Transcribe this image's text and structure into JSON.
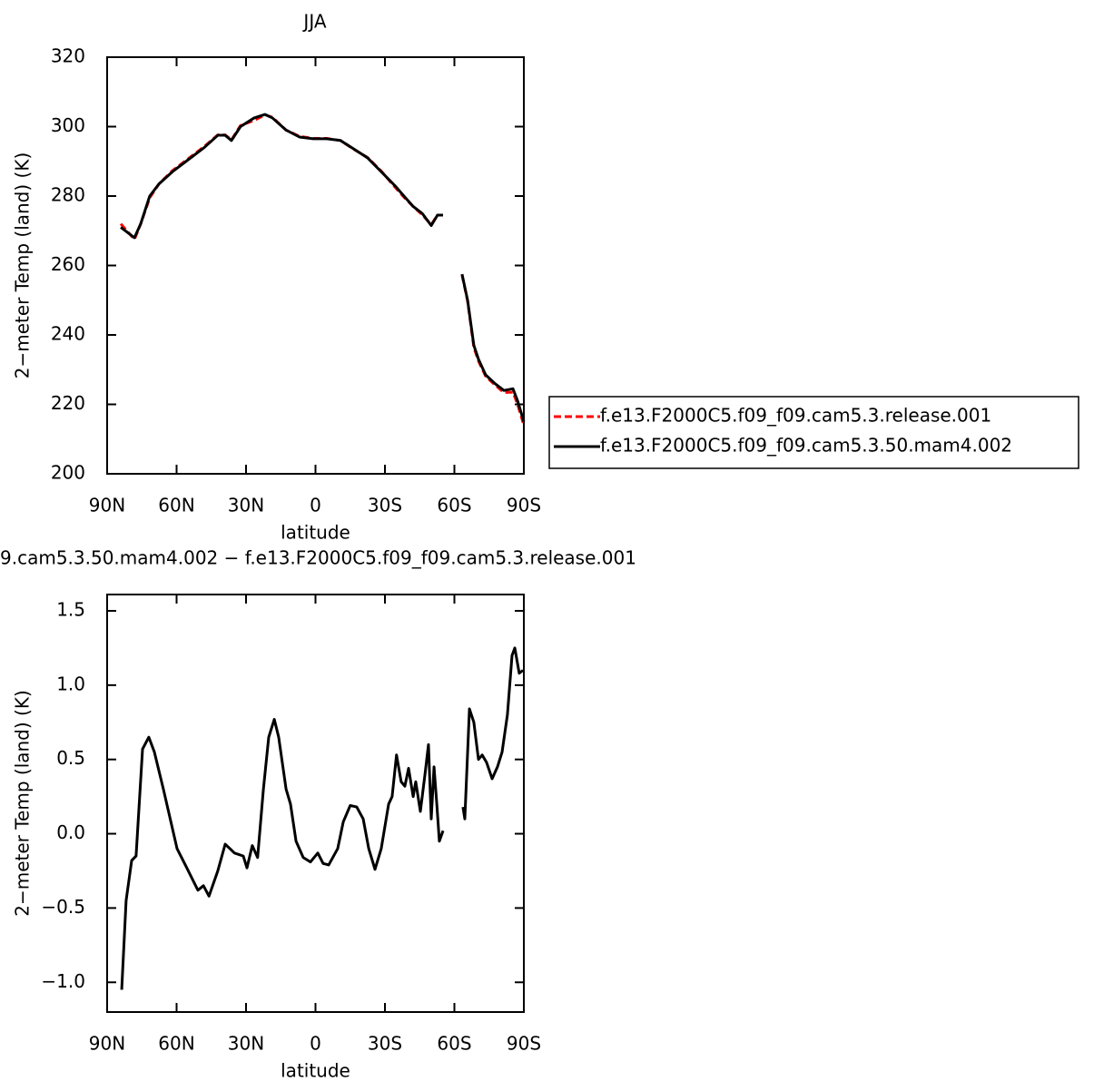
{
  "chart_data": [
    {
      "type": "line",
      "title": "JJA",
      "xlabel": "latitude",
      "ylabel": "2−meter Temp (land) (K)",
      "x": [
        84.1,
        78.2,
        75.5,
        71.6,
        67.6,
        61.8,
        55.9,
        48,
        42.2,
        39,
        36.3,
        32.4,
        26.5,
        21.8,
        18.6,
        12.7,
        6.9,
        1,
        -4.9,
        -10.8,
        -16.7,
        -22.5,
        -28.4,
        -34.3,
        -38.2,
        -42.2,
        -46.1,
        -50,
        -52.7,
        -55.1,
        -59,
        -63.3,
        -65.7,
        -68.4,
        -70.4,
        -73.5,
        -77.5,
        -81.4,
        -85.3,
        -87.3,
        -90
      ],
      "series": [
        {
          "name": "f.e13.F2000C5.f09_f09.cam5.3.release.001",
          "color": "#ff0000",
          "line_style": "dashed",
          "values": [
            272,
            267.5,
            272,
            279.5,
            283.5,
            287.3,
            290.3,
            294.3,
            297.6,
            297.6,
            296.2,
            300.3,
            301.8,
            303.4,
            302.7,
            299,
            297.2,
            296.6,
            296.6,
            296,
            293.4,
            291.1,
            287.2,
            282.6,
            279.7,
            277,
            274.6,
            271.8,
            274.5,
            274.5,
            null,
            257.3,
            249.8,
            236.4,
            232.5,
            228.1,
            225.6,
            223.4,
            223.5,
            220,
            214
          ]
        },
        {
          "name": "f.e13.F2000C5.f09_f09.cam5.3.50.mam4.002",
          "color": "#000000",
          "line_style": "solid",
          "values": [
            271,
            268,
            272,
            280,
            283.5,
            287,
            290,
            294,
            297.5,
            297.5,
            296,
            300,
            302.5,
            303.5,
            302.5,
            299,
            297,
            296.5,
            296.5,
            296,
            293.5,
            291,
            287,
            283,
            280,
            277,
            275,
            271.5,
            274.5,
            274.5,
            null,
            257.5,
            250,
            237,
            233,
            228.5,
            226,
            224,
            224.5,
            221,
            215
          ]
        }
      ],
      "xlim": [
        90,
        -90
      ],
      "xticks": [
        {
          "value": 90,
          "label": "90N"
        },
        {
          "value": 60,
          "label": "60N"
        },
        {
          "value": 30,
          "label": "30N"
        },
        0,
        {
          "value": -30,
          "label": "30S"
        },
        {
          "value": -60,
          "label": "60S"
        },
        {
          "value": -90,
          "label": "90S"
        }
      ],
      "ylim": [
        200,
        320
      ],
      "yticks": [
        200,
        220,
        240,
        260,
        280,
        300,
        320
      ],
      "legend_position": "right"
    },
    {
      "type": "line",
      "title": "9.cam5.3.50.mam4.002 − f.e13.F2000C5.f09_f09.cam5.3.release.001",
      "xlabel": "latitude",
      "ylabel": "2−meter Temp (land) (K)",
      "color": "#000000",
      "x": [
        83.7,
        81.8,
        79.4,
        77.5,
        74.7,
        72,
        69.6,
        65.7,
        59.8,
        55.9,
        50.8,
        48.4,
        46,
        42.2,
        39,
        35,
        31.2,
        29.6,
        27.3,
        25,
        22.5,
        20.2,
        17.8,
        15.9,
        12.7,
        10.8,
        8.4,
        5.3,
        2.2,
        -1,
        -3.3,
        -5.7,
        -9.6,
        -12,
        -15,
        -17.8,
        -20.6,
        -23,
        -25.7,
        -28.4,
        -31.6,
        -33.1,
        -35,
        -37,
        -38.6,
        -40.2,
        -42.2,
        -43.3,
        -45.3,
        -47.3,
        -48.8,
        -50,
        -51.2,
        -52.4,
        -53.5,
        -55.1,
        -59,
        -63.7,
        -64.5,
        -66.5,
        -68.4,
        -70.4,
        -72,
        -73.9,
        -76.3,
        -78.6,
        -80.6,
        -82.9,
        -84.9,
        -86.1,
        -88,
        -89.6
      ],
      "values": [
        -1.05,
        -0.45,
        -0.18,
        -0.15,
        0.57,
        0.65,
        0.55,
        0.3,
        -0.1,
        -0.22,
        -0.38,
        -0.35,
        -0.42,
        -0.25,
        -0.07,
        -0.13,
        -0.15,
        -0.23,
        -0.08,
        -0.16,
        0.3,
        0.65,
        0.77,
        0.65,
        0.3,
        0.2,
        -0.05,
        -0.16,
        -0.19,
        -0.13,
        -0.2,
        -0.21,
        -0.1,
        0.08,
        0.19,
        0.18,
        0.1,
        -0.1,
        -0.24,
        -0.1,
        0.2,
        0.25,
        0.53,
        0.35,
        0.32,
        0.44,
        0.25,
        0.35,
        0.15,
        0.4,
        0.6,
        0.1,
        0.45,
        0.2,
        -0.05,
        0.02,
        null,
        0.18,
        0.1,
        0.84,
        0.75,
        0.5,
        0.53,
        0.48,
        0.37,
        0.45,
        0.55,
        0.8,
        1.2,
        1.25,
        1.08,
        1.1
      ],
      "xlim": [
        90,
        -90
      ],
      "xticks": [
        {
          "value": 90,
          "label": "90N"
        },
        {
          "value": 60,
          "label": "60N"
        },
        {
          "value": 30,
          "label": "30N"
        },
        0,
        {
          "value": -30,
          "label": "30S"
        },
        {
          "value": -60,
          "label": "60S"
        },
        {
          "value": -90,
          "label": "90S"
        }
      ],
      "ylim": [
        -1.2,
        1.61
      ],
      "yticks": [
        {
          "value": -1,
          "label": "−1.0"
        },
        {
          "value": -0.5,
          "label": "−0.5"
        },
        {
          "value": 0,
          "label": "0.0"
        },
        {
          "value": 0.5,
          "label": "0.5"
        },
        {
          "value": 1,
          "label": "1.0"
        },
        {
          "value": 1.5,
          "label": "1.5"
        }
      ]
    }
  ]
}
